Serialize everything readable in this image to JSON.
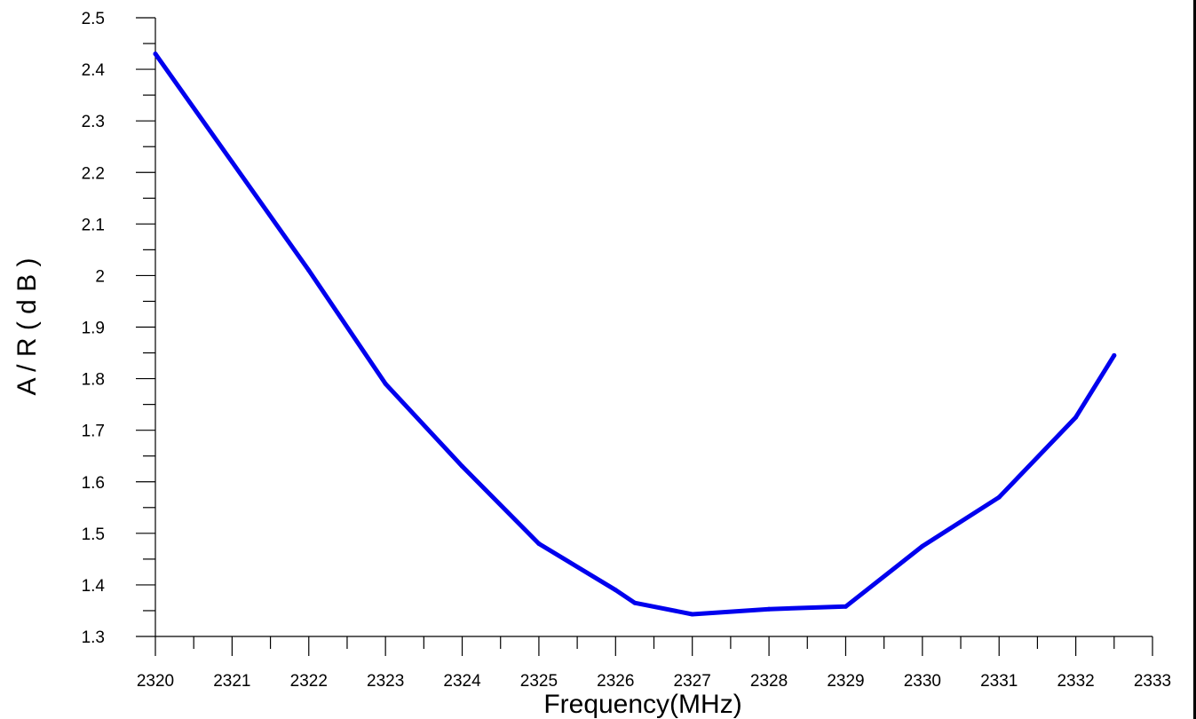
{
  "chart_data": {
    "type": "line",
    "title": "",
    "xlabel": "Frequency(MHz)",
    "ylabel": "A / R ( d B )",
    "xlim": [
      2320,
      2333
    ],
    "ylim": [
      1.3,
      2.5
    ],
    "x_ticks": [
      "2320",
      "2321",
      "2322",
      "2323",
      "2324",
      "2325",
      "2326",
      "2327",
      "2328",
      "2329",
      "2330",
      "2331",
      "2332",
      "2333"
    ],
    "y_ticks": [
      "1.3",
      "1.4",
      "1.5",
      "1.6",
      "1.7",
      "1.8",
      "1.9",
      "2",
      "2.1",
      "2.2",
      "2.3",
      "2.4",
      "2.5"
    ],
    "grid": false,
    "legend": "none",
    "series": [
      {
        "color": "#0000ee",
        "x": [
          2320,
          2321,
          2322,
          2323,
          2324,
          2325,
          2326,
          2326.25,
          2327,
          2328,
          2329,
          2330,
          2331,
          2332,
          2332.5
        ],
        "y": [
          2.43,
          2.22,
          2.01,
          1.79,
          1.63,
          1.48,
          1.39,
          1.365,
          1.343,
          1.353,
          1.358,
          1.475,
          1.57,
          1.725,
          1.845
        ]
      }
    ]
  }
}
